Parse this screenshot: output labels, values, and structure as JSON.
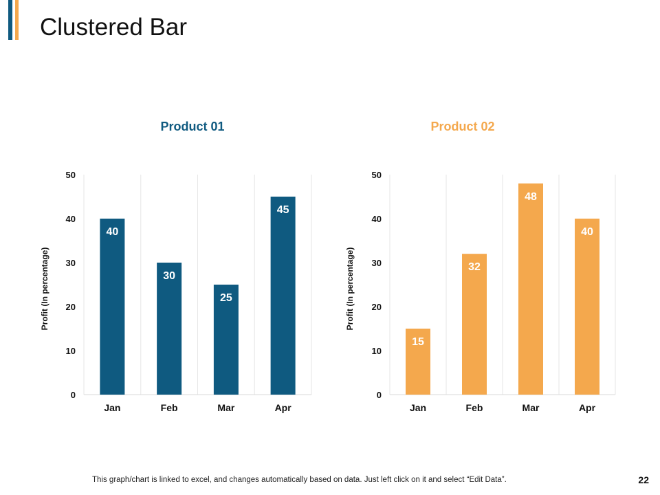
{
  "slide": {
    "title": "Clustered Bar",
    "footer_note": "This graph/chart is linked to excel, and changes automatically based on data. Just left click on it and select “Edit Data”.",
    "page_number": "22"
  },
  "colors": {
    "accent_dark": "#0F5A80",
    "accent_light": "#F4A84D",
    "grid": "#e6e6e6"
  },
  "chart_data": [
    {
      "type": "bar",
      "title": "Product 01",
      "categories": [
        "Jan",
        "Feb",
        "Mar",
        "Apr"
      ],
      "values": [
        40,
        30,
        25,
        45
      ],
      "xlabel": "",
      "ylabel": "Profit (In percentage)",
      "ylim": [
        0,
        50
      ],
      "yticks": [
        0,
        10,
        20,
        30,
        40,
        50
      ],
      "color": "#0F5A80"
    },
    {
      "type": "bar",
      "title": "Product 02",
      "categories": [
        "Jan",
        "Feb",
        "Mar",
        "Apr"
      ],
      "values": [
        15,
        32,
        48,
        40
      ],
      "xlabel": "",
      "ylabel": "Profit (In percentage)",
      "ylim": [
        0,
        50
      ],
      "yticks": [
        0,
        10,
        20,
        30,
        40,
        50
      ],
      "color": "#F4A84D"
    }
  ]
}
